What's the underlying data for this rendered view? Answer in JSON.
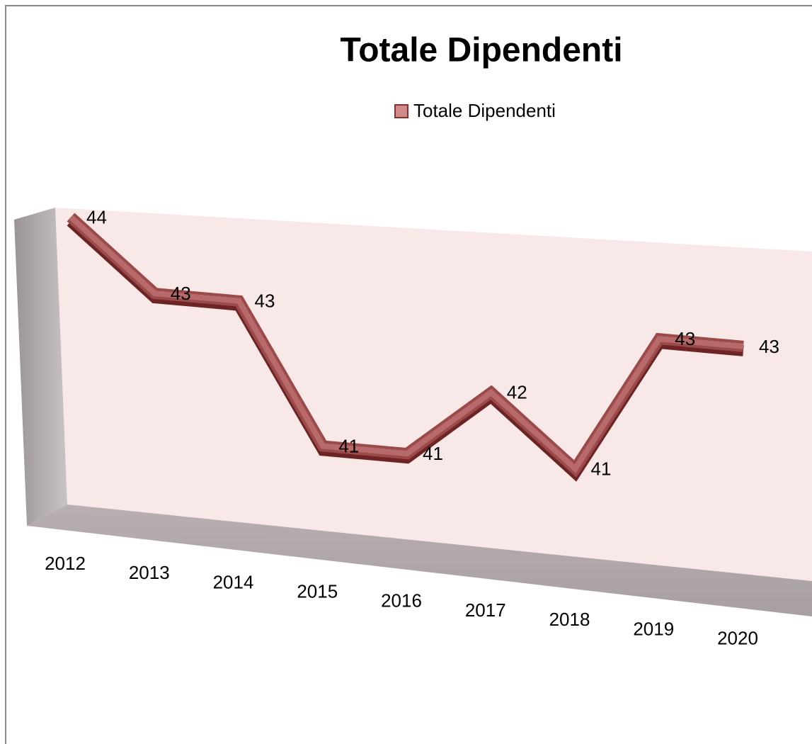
{
  "chart_data": {
    "type": "line3d",
    "title": "Totale Dipendenti",
    "categories": [
      "2012",
      "2013",
      "2014",
      "2015",
      "2016",
      "2017",
      "2018",
      "2019",
      "2020"
    ],
    "series": [
      {
        "name": "Totale Dipendenti",
        "color": "#9b4a4a",
        "values": [
          44,
          43,
          43,
          41,
          41,
          42,
          41,
          43,
          43
        ]
      }
    ],
    "ylim": [
      40,
      44
    ],
    "legend": "top"
  }
}
